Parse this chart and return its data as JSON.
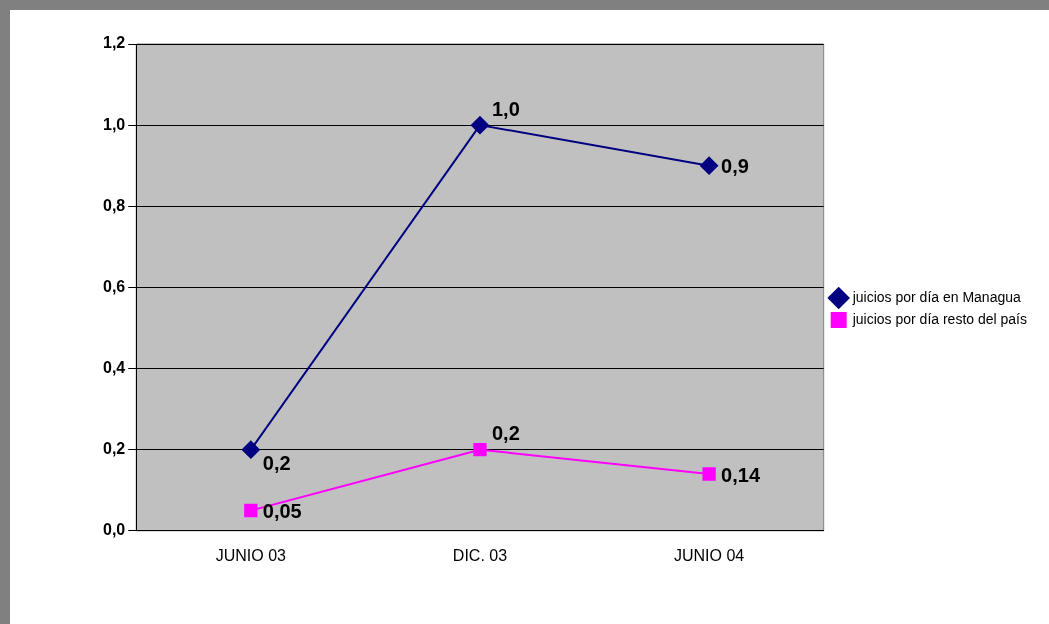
{
  "chart_data": {
    "type": "line",
    "categories": [
      "JUNIO 03",
      "DIC. 03",
      "JUNIO 04"
    ],
    "series": [
      {
        "name": "juicios por día en Managua",
        "color": "#000080",
        "marker": "diamond",
        "values": [
          0.2,
          1.0,
          0.9
        ],
        "value_labels": [
          "0,2",
          "1,0",
          "0,9"
        ]
      },
      {
        "name": "juicios por día resto del país",
        "color": "#ff00ff",
        "marker": "square",
        "values": [
          0.05,
          0.2,
          0.14
        ],
        "value_labels": [
          "0,05",
          "0,2",
          "0,14"
        ]
      }
    ],
    "ylim": [
      0,
      1.2
    ],
    "yticks": [
      {
        "value": 0,
        "label": "0,0"
      },
      {
        "value": 0.2,
        "label": "0,2"
      },
      {
        "value": 0.4,
        "label": "0,4"
      },
      {
        "value": 0.6,
        "label": "0,6"
      },
      {
        "value": 0.8,
        "label": "0,8"
      },
      {
        "value": 1.0,
        "label": "1,0"
      },
      {
        "value": 1.2,
        "label": "1,2"
      }
    ],
    "grid": "y",
    "legend": "right",
    "line_style": "solid"
  }
}
